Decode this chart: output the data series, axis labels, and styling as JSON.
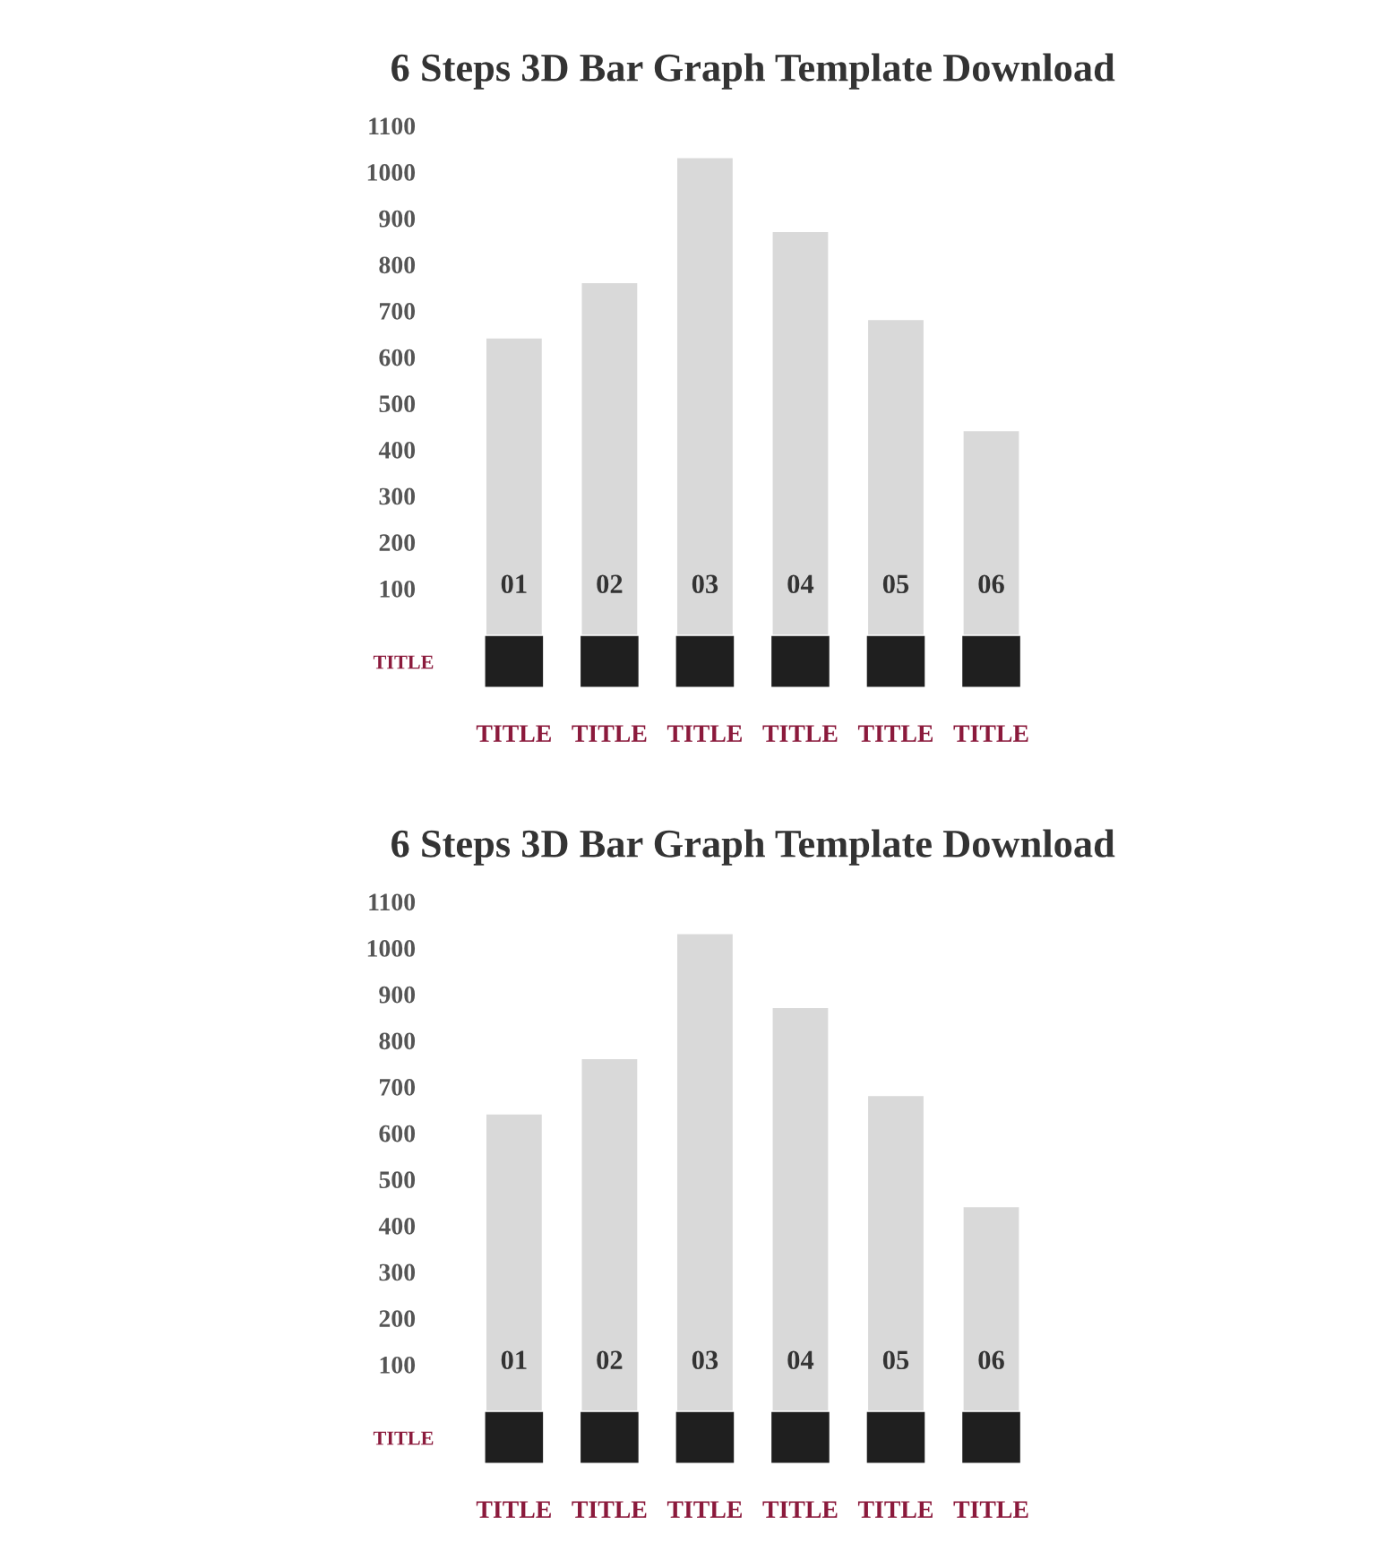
{
  "chart_data": [
    {
      "type": "bar",
      "title": "6 Steps 3D Bar Graph Template Download",
      "ylabel": "TITLE",
      "categories": [
        "TITLE",
        "TITLE",
        "TITLE",
        "TITLE",
        "TITLE",
        "TITLE"
      ],
      "values": [
        640,
        760,
        1030,
        870,
        680,
        440
      ],
      "color": "#d9d9d9",
      "annotations": [
        "01",
        "02",
        "03",
        "04",
        "05",
        "06"
      ],
      "ylim": [
        0,
        1100
      ],
      "yticks": [
        100,
        200,
        300,
        400,
        500,
        600,
        700,
        800,
        900,
        1000,
        1100
      ]
    },
    {
      "type": "bar",
      "title": "6 Steps 3D Bar Graph Template Download",
      "ylabel": "TITLE",
      "categories": [
        "TITLE",
        "TITLE",
        "TITLE",
        "TITLE",
        "TITLE",
        "TITLE"
      ],
      "values": [
        640,
        760,
        1030,
        870,
        680,
        440
      ],
      "color": "#d9d9d9",
      "annotations": [
        "01",
        "02",
        "03",
        "04",
        "05",
        "06"
      ],
      "ylim": [
        0,
        1100
      ],
      "yticks": [
        100,
        200,
        300,
        400,
        500,
        600,
        700,
        800,
        900,
        1000,
        1100
      ]
    }
  ]
}
